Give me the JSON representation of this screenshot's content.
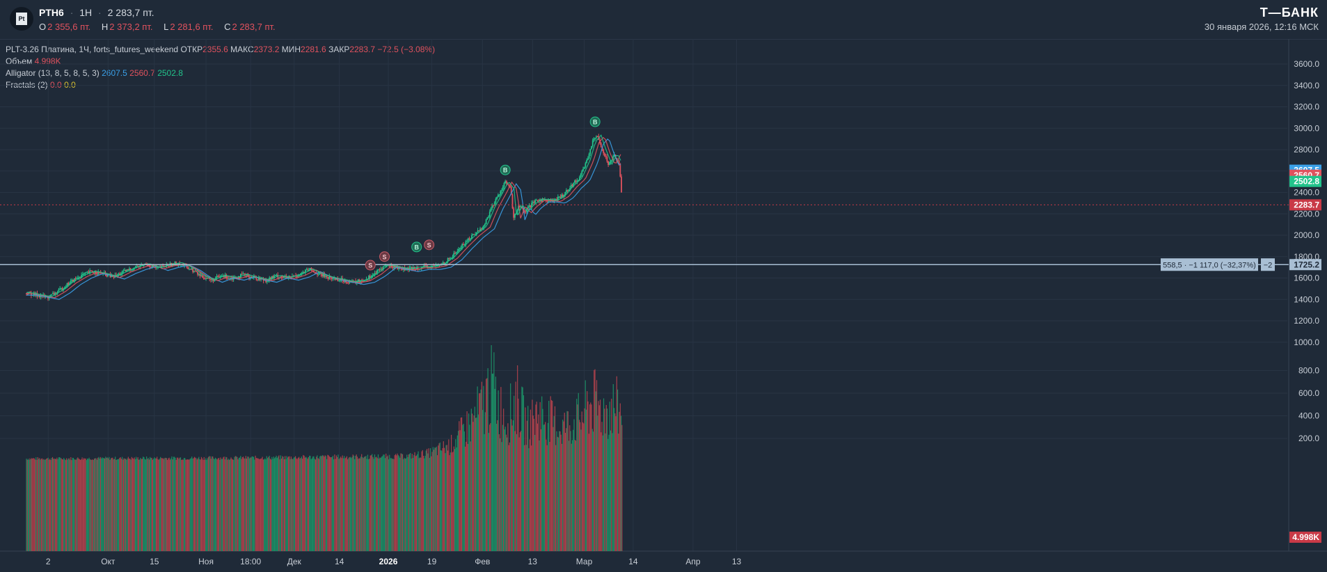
{
  "header": {
    "logo_text": "Pt",
    "ticker": "PTH6",
    "interval": "1Н",
    "last_price": "2 283,7 пт.",
    "ohlc": [
      {
        "label": "О",
        "value": "2 355,6 пт."
      },
      {
        "label": "Н",
        "value": "2 373,2 пт."
      },
      {
        "label": "L",
        "value": "2 281,6 пт."
      },
      {
        "label": "С",
        "value": "2 283,7 пт."
      }
    ],
    "brand": "Т—БАНК",
    "datetime": "30 января 2026, 12:16 МСК"
  },
  "legend": {
    "instrument": "PLT-3.26 Платина, 1Ч, forts_futures_weekend",
    "open_label": "ОТКР",
    "open": "2355.6",
    "high_label": "МАКС",
    "high": "2373.2",
    "low_label": "МИН",
    "low": "2281.6",
    "close_label": "ЗАКР",
    "close": "2283.7",
    "change": "−72.5 (−3.08%)",
    "volume_label": "Объем",
    "volume": "4.998K",
    "alligator_label": "Alligator (13, 8, 5, 8, 5, 3)",
    "alligator_jaw": "2607.5",
    "alligator_teeth": "2560.7",
    "alligator_lips": "2502.8",
    "fractals_label": "Fractals (2)",
    "fractals_up": "0.0",
    "fractals_down": "0.0"
  },
  "colors": {
    "background": "#1f2a38",
    "up": "#22c38b",
    "down": "#e0525e",
    "jaw": "#3aa0e8",
    "teeth": "#e0525e",
    "lips": "#22c38b",
    "hline": "#a9bfd4",
    "price_label": "#c93a47"
  },
  "chart_data": {
    "type": "candlestick",
    "y_ticks": [
      "3600.0",
      "3400.0",
      "3200.0",
      "3000.0",
      "2800.0",
      "2600.0",
      "2400.0",
      "2200.0",
      "2000.0",
      "1800.0",
      "1600.0",
      "1400.0",
      "1200.0",
      "1000.0",
      "800.0",
      "600.0",
      "400.0",
      "200.0"
    ],
    "ylim": [
      130,
      3700
    ],
    "x_ticks": [
      {
        "label": "2",
        "t": 0.04
      },
      {
        "label": "Окт",
        "t": 0.15
      },
      {
        "label": "15",
        "t": 0.235
      },
      {
        "label": "Ноя",
        "t": 0.33
      },
      {
        "label": "18:00",
        "t": 0.412
      },
      {
        "label": "Дек",
        "t": 0.492
      },
      {
        "label": "14",
        "t": 0.575
      },
      {
        "label": "2026",
        "t": 0.665
      },
      {
        "label": "19",
        "t": 0.745
      },
      {
        "label": "Фев",
        "t": 0.838
      },
      {
        "label": "13",
        "t": 0.93
      },
      {
        "label": "Мар",
        "t": 1.025
      },
      {
        "label": "14",
        "t": 1.115
      },
      {
        "label": "Апр",
        "t": 1.225
      },
      {
        "label": "13",
        "t": 1.305
      }
    ],
    "price_path": [
      [
        0.0,
        1460
      ],
      [
        0.02,
        1440
      ],
      [
        0.04,
        1420
      ],
      [
        0.06,
        1480
      ],
      [
        0.08,
        1560
      ],
      [
        0.1,
        1620
      ],
      [
        0.12,
        1660
      ],
      [
        0.14,
        1640
      ],
      [
        0.16,
        1610
      ],
      [
        0.18,
        1660
      ],
      [
        0.2,
        1700
      ],
      [
        0.22,
        1730
      ],
      [
        0.24,
        1690
      ],
      [
        0.26,
        1720
      ],
      [
        0.28,
        1740
      ],
      [
        0.3,
        1690
      ],
      [
        0.32,
        1620
      ],
      [
        0.34,
        1580
      ],
      [
        0.36,
        1620
      ],
      [
        0.38,
        1600
      ],
      [
        0.4,
        1630
      ],
      [
        0.42,
        1600
      ],
      [
        0.44,
        1580
      ],
      [
        0.46,
        1620
      ],
      [
        0.48,
        1600
      ],
      [
        0.5,
        1630
      ],
      [
        0.52,
        1680
      ],
      [
        0.54,
        1630
      ],
      [
        0.56,
        1600
      ],
      [
        0.58,
        1580
      ],
      [
        0.6,
        1560
      ],
      [
        0.62,
        1580
      ],
      [
        0.64,
        1640
      ],
      [
        0.66,
        1720
      ],
      [
        0.68,
        1700
      ],
      [
        0.7,
        1680
      ],
      [
        0.72,
        1700
      ],
      [
        0.74,
        1700
      ],
      [
        0.76,
        1720
      ],
      [
        0.78,
        1790
      ],
      [
        0.8,
        1900
      ],
      [
        0.82,
        2000
      ],
      [
        0.84,
        2080
      ],
      [
        0.855,
        2260
      ],
      [
        0.87,
        2400
      ],
      [
        0.88,
        2500
      ],
      [
        0.89,
        2430
      ],
      [
        0.895,
        2150
      ],
      [
        0.905,
        2280
      ],
      [
        0.915,
        2210
      ],
      [
        0.925,
        2270
      ],
      [
        0.94,
        2330
      ],
      [
        0.955,
        2330
      ],
      [
        0.97,
        2320
      ],
      [
        0.985,
        2370
      ],
      [
        1.0,
        2460
      ],
      [
        1.015,
        2530
      ],
      [
        1.03,
        2700
      ],
      [
        1.04,
        2870
      ],
      [
        1.05,
        2930
      ],
      [
        1.06,
        2780
      ],
      [
        1.07,
        2660
      ],
      [
        1.08,
        2760
      ],
      [
        1.09,
        2650
      ],
      [
        1.095,
        2290
      ]
    ],
    "volume_path": [
      [
        0.0,
        30
      ],
      [
        0.4,
        40
      ],
      [
        0.7,
        60
      ],
      [
        0.74,
        100
      ],
      [
        0.78,
        200
      ],
      [
        0.8,
        350
      ],
      [
        0.82,
        500
      ],
      [
        0.84,
        700
      ],
      [
        0.855,
        980
      ],
      [
        0.87,
        650
      ],
      [
        0.885,
        520
      ],
      [
        0.9,
        800
      ],
      [
        0.92,
        420
      ],
      [
        0.94,
        600
      ],
      [
        0.96,
        520
      ],
      [
        0.98,
        420
      ],
      [
        1.0,
        460
      ],
      [
        1.02,
        560
      ],
      [
        1.04,
        740
      ],
      [
        1.06,
        620
      ],
      [
        1.08,
        680
      ],
      [
        1.095,
        600
      ]
    ],
    "alligator": {
      "jaw": 2607.5,
      "teeth": 2560.7,
      "lips": 2502.8
    },
    "current_price": 2283.7,
    "current_volume_label": "4.998K",
    "horizontal_line": {
      "price": 1725.2,
      "label": "1725.2",
      "annotation": "558,5 · −1 117,0 (−32,37%)",
      "badge": "−2"
    },
    "markers": [
      {
        "type": "S",
        "t": 0.632,
        "price": 1720
      },
      {
        "type": "S",
        "t": 0.658,
        "price": 1800
      },
      {
        "type": "B",
        "t": 0.717,
        "price": 1890
      },
      {
        "type": "S",
        "t": 0.74,
        "price": 1910
      },
      {
        "type": "B",
        "t": 0.88,
        "price": 2610
      },
      {
        "type": "B",
        "t": 1.045,
        "price": 3060
      }
    ]
  }
}
